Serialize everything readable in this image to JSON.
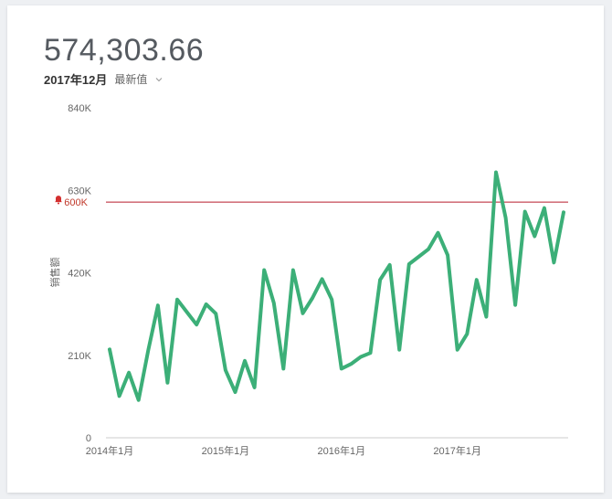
{
  "kpi": {
    "value": "574,303.66",
    "period": "2017年12月",
    "mode": "最新值"
  },
  "colors": {
    "line": "#3caf78",
    "threshold": "#b71c2c",
    "axis": "#cccccc"
  },
  "chart_data": {
    "type": "line",
    "ylabel": "销售额",
    "ylim": [
      0,
      840000
    ],
    "yticks": [
      {
        "value": 0,
        "label": "0"
      },
      {
        "value": 210000,
        "label": "210K"
      },
      {
        "value": 420000,
        "label": "420K"
      },
      {
        "value": 630000,
        "label": "630K"
      },
      {
        "value": 840000,
        "label": "840K"
      }
    ],
    "xticks": [
      {
        "index": 0,
        "label": "2014年1月"
      },
      {
        "index": 12,
        "label": "2015年1月"
      },
      {
        "index": 24,
        "label": "2016年1月"
      },
      {
        "index": 36,
        "label": "2017年1月"
      }
    ],
    "threshold": {
      "value": 600000,
      "label": "600K",
      "icon": "bell-icon"
    },
    "grid": false,
    "series": [
      {
        "values": [
          225000,
          106000,
          166000,
          96000,
          223000,
          337000,
          140000,
          352000,
          320000,
          288000,
          340000,
          316000,
          172000,
          116000,
          196000,
          128000,
          427000,
          343000,
          176000,
          427000,
          317000,
          356000,
          404000,
          352000,
          176000,
          188000,
          206000,
          216000,
          402000,
          440000,
          224000,
          442000,
          461000,
          480000,
          522000,
          465000,
          224000,
          264000,
          402000,
          308000,
          676000,
          560000,
          338000,
          576000,
          513000,
          585000,
          446000,
          574000
        ]
      }
    ]
  }
}
